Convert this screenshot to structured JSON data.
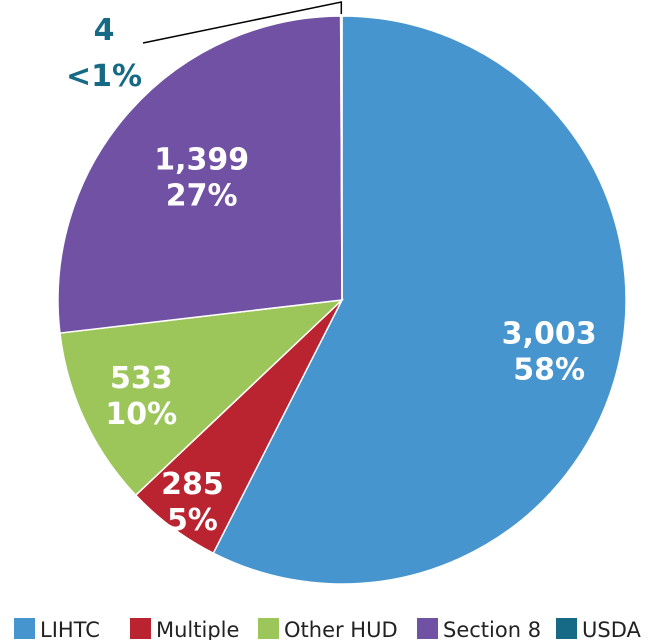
{
  "chart_data": {
    "type": "pie",
    "categories": [
      "LIHTC",
      "Multiple",
      "Other HUD",
      "Section 8",
      "USDA"
    ],
    "values": [
      3003,
      285,
      533,
      1399,
      4
    ],
    "percent_labels": [
      "58%",
      "5%",
      "10%",
      "27%",
      "<1%"
    ],
    "value_labels": [
      "3,003",
      "285",
      "533",
      "1,399",
      "4"
    ],
    "colors": [
      "#4795CE",
      "#BA2330",
      "#9CC65A",
      "#7151A3",
      "#176A86"
    ],
    "legend_position": "bottom",
    "title": ""
  }
}
